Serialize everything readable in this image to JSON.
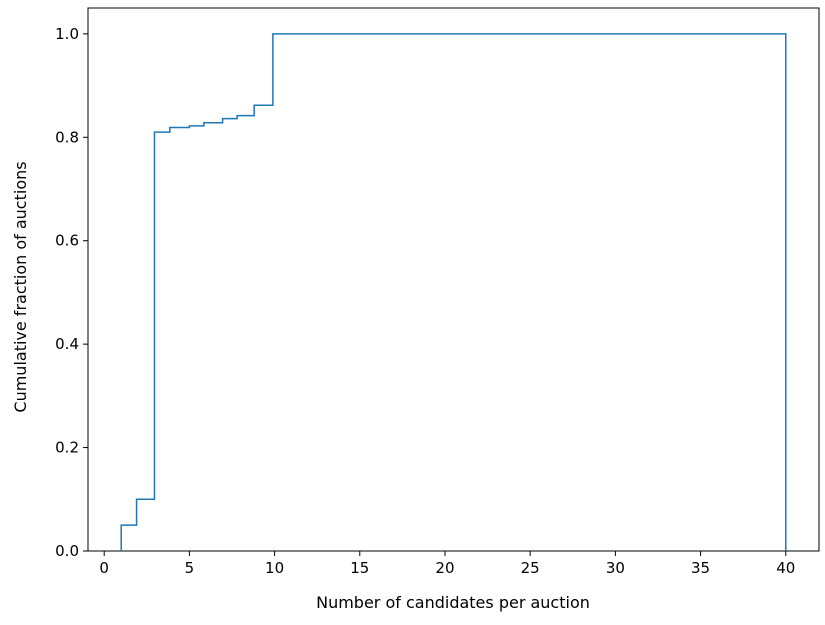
{
  "chart_data": {
    "type": "line",
    "subtype": "cumulative-step-histogram",
    "title": "",
    "xlabel": "Number of candidates per auction",
    "ylabel": "Cumulative fraction of auctions",
    "xlim": [
      -0.95,
      41.95
    ],
    "ylim": [
      0,
      1.05
    ],
    "xticks": [
      0,
      5,
      10,
      15,
      20,
      25,
      30,
      35,
      40
    ],
    "yticks": [
      0.0,
      0.2,
      0.4,
      0.6,
      0.8,
      1.0
    ],
    "ytick_labels": [
      "0.0",
      "0.2",
      "0.4",
      "0.6",
      "0.8",
      "1.0"
    ],
    "grid": false,
    "legend": "none",
    "series": [
      {
        "color": "#1f77b4",
        "steps": [
          {
            "x": 1.0,
            "y": 0.05
          },
          {
            "x": 1.9,
            "y": 0.1
          },
          {
            "x": 2.95,
            "y": 0.81
          },
          {
            "x": 3.85,
            "y": 0.819
          },
          {
            "x": 5.0,
            "y": 0.822
          },
          {
            "x": 5.85,
            "y": 0.828
          },
          {
            "x": 6.95,
            "y": 0.836
          },
          {
            "x": 7.8,
            "y": 0.842
          },
          {
            "x": 8.8,
            "y": 0.862
          },
          {
            "x": 9.9,
            "y": 1.0
          },
          {
            "x": 40.0,
            "y": 0.0
          }
        ]
      }
    ]
  }
}
